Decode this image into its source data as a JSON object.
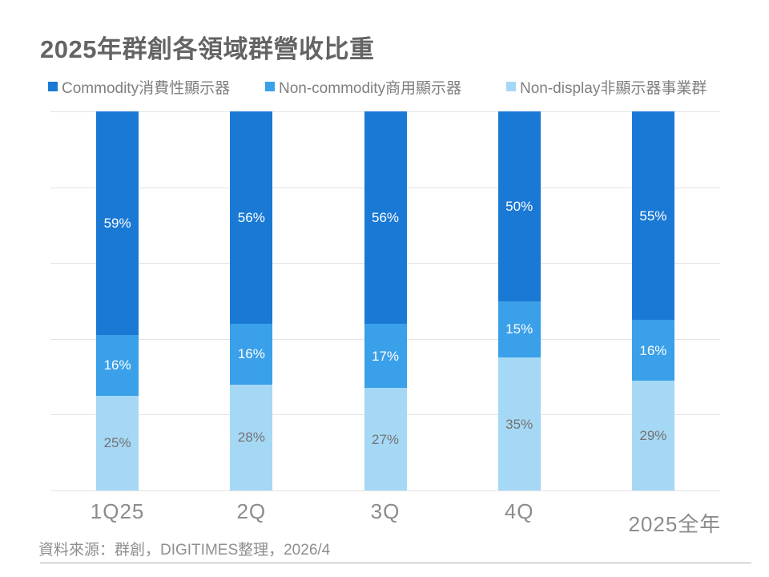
{
  "chart_data": {
    "type": "bar",
    "stacked": true,
    "orientation": "vertical",
    "title": "2025年群創各領域群營收比重",
    "categories": [
      "1Q25",
      "2Q",
      "3Q",
      "4Q",
      "2025全年"
    ],
    "series": [
      {
        "name": "Commodity消費性顯示器",
        "color": "#1a79d5",
        "label_color": "#ffffff",
        "values": [
          59,
          56,
          56,
          50,
          55
        ]
      },
      {
        "name": "Non-commodity商用顯示器",
        "color": "#3aa0e9",
        "label_color": "#ffffff",
        "values": [
          16,
          16,
          17,
          15,
          16
        ]
      },
      {
        "name": "Non-display非顯示器事業群",
        "color": "#a5d8f5",
        "label_color": "#737373",
        "values": [
          25,
          28,
          27,
          35,
          29
        ]
      }
    ],
    "data_label_format": "{value}%",
    "ylim": [
      0,
      100
    ],
    "gridlines": [
      0,
      20,
      40,
      60,
      80,
      100
    ],
    "grid_color": "#e3e3e3",
    "legend_position": "top",
    "y_axis_labels_visible": false,
    "source_note": "資料來源：群創，DIGITIMES整理，2026/4"
  }
}
